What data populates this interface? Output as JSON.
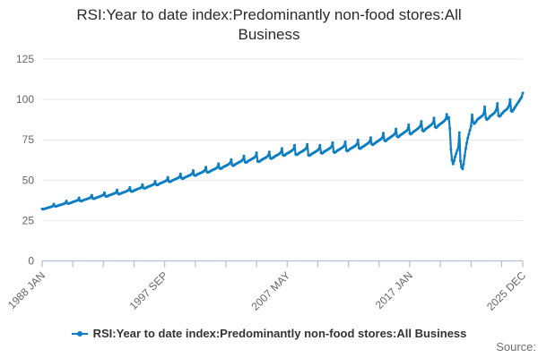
{
  "title": {
    "text": "RSI:Year to date index:Predominantly non-food stores:All Business",
    "lines": [
      "RSI:Year to date index:Predominantly non-food stores:All",
      "Business"
    ]
  },
  "source_label": "Source:",
  "legend": {
    "label": "RSI:Year to date index:Predominantly non-food stores:All Business",
    "marker": "line-dot-icon"
  },
  "colors": {
    "series_blue": "#0e7ec2",
    "grid": "#e6e6e6",
    "axis": "#b3bfd1",
    "tick_label": "#666666",
    "title_text": "#2a2a2a",
    "legend_text": "#333333",
    "source_text": "#6f6f6f",
    "background": "#ffffff"
  },
  "chart_data": {
    "type": "line",
    "title": "RSI:Year to date index:Predominantly non-food stores:All Business",
    "xlabel": "",
    "ylabel": "",
    "grid": true,
    "legend_position": "bottom",
    "ylim": [
      0,
      135
    ],
    "y_ticks": [
      0,
      25,
      50,
      75,
      100,
      125
    ],
    "x_axis": {
      "start": "1988 JAN",
      "end": "2025 DEC",
      "frequency": "monthly",
      "minor_tick_months": [
        0,
        29,
        58,
        87,
        116,
        145,
        174,
        203,
        232,
        261,
        290,
        319,
        348,
        377,
        406,
        435,
        455
      ],
      "labels": [
        {
          "label": "1988 JAN",
          "month": 0
        },
        {
          "label": "1997 SEP",
          "month": 116
        },
        {
          "label": "2007 MAY",
          "month": 232
        },
        {
          "label": "2017 JAN",
          "month": 348
        },
        {
          "label": "2025 DEC",
          "month": 455
        }
      ]
    },
    "series": [
      {
        "name": "RSI:Year to date index:Predominantly non-food stores:All Business",
        "start": "1988-01",
        "values": [
          32.2,
          32.0,
          32.2,
          32.4,
          32.6,
          32.8,
          33.0,
          33.2,
          33.4,
          33.6,
          34.0,
          35.2,
          33.9,
          33.7,
          33.9,
          34.2,
          34.4,
          34.6,
          34.8,
          35.0,
          35.2,
          35.5,
          35.8,
          37.1,
          35.7,
          35.5,
          35.7,
          36.0,
          36.2,
          36.5,
          36.7,
          36.9,
          37.1,
          37.4,
          37.7,
          39.1,
          37.2,
          37.0,
          37.2,
          37.6,
          37.8,
          38.0,
          38.2,
          38.5,
          38.7,
          39.0,
          39.4,
          40.7,
          38.7,
          38.5,
          38.7,
          39.0,
          39.3,
          39.5,
          39.7,
          40.0,
          40.2,
          40.5,
          40.9,
          42.3,
          40.1,
          39.9,
          40.1,
          40.5,
          40.7,
          41.0,
          41.2,
          41.4,
          41.7,
          42.0,
          42.4,
          43.9,
          41.6,
          41.3,
          41.6,
          41.9,
          42.2,
          42.4,
          42.7,
          42.9,
          43.2,
          43.5,
          43.9,
          45.5,
          43.2,
          42.9,
          43.2,
          43.6,
          43.8,
          44.1,
          44.4,
          44.6,
          44.9,
          45.2,
          45.6,
          47.3,
          45.1,
          44.9,
          45.1,
          45.5,
          45.8,
          46.1,
          46.3,
          46.6,
          46.9,
          47.2,
          47.7,
          49.4,
          47.3,
          47.0,
          47.3,
          47.8,
          48.0,
          48.3,
          48.6,
          48.9,
          49.2,
          49.5,
          50.0,
          51.8,
          49.2,
          49.0,
          49.2,
          49.7,
          50.0,
          50.3,
          50.6,
          50.9,
          51.2,
          51.5,
          52.0,
          53.9,
          51.2,
          50.9,
          51.2,
          51.6,
          51.9,
          52.2,
          52.5,
          52.8,
          53.1,
          53.5,
          54.1,
          56.0,
          53.1,
          52.8,
          53.1,
          53.6,
          53.9,
          54.2,
          54.5,
          54.8,
          55.1,
          55.5,
          56.1,
          58.1,
          55.0,
          54.7,
          55.0,
          55.5,
          55.8,
          56.2,
          56.5,
          56.8,
          57.1,
          57.5,
          58.1,
          60.2,
          57.4,
          57.1,
          57.4,
          57.9,
          58.3,
          58.6,
          58.9,
          59.3,
          59.6,
          60.1,
          60.7,
          62.8,
          59.3,
          59.0,
          59.3,
          59.9,
          60.2,
          60.6,
          60.9,
          61.3,
          61.6,
          62.1,
          62.7,
          64.9,
          61.2,
          60.9,
          61.2,
          61.8,
          62.2,
          62.5,
          62.9,
          63.3,
          63.6,
          64.1,
          64.7,
          67.0,
          61.7,
          61.4,
          61.7,
          62.3,
          62.6,
          63.0,
          63.4,
          63.7,
          64.1,
          64.6,
          65.2,
          67.5,
          63.6,
          63.3,
          63.6,
          64.2,
          64.6,
          65.0,
          65.4,
          65.7,
          66.1,
          66.6,
          67.2,
          69.6,
          65.6,
          65.2,
          65.6,
          66.2,
          66.5,
          66.9,
          67.3,
          67.7,
          68.1,
          68.6,
          69.3,
          71.7,
          66.0,
          65.7,
          66.0,
          66.6,
          67.0,
          67.4,
          67.8,
          68.2,
          68.6,
          69.1,
          69.8,
          72.2,
          65.6,
          65.2,
          65.6,
          66.2,
          66.5,
          66.9,
          67.3,
          67.7,
          68.1,
          68.6,
          69.3,
          71.7,
          67.0,
          66.6,
          67.0,
          67.6,
          68.0,
          68.4,
          68.8,
          69.2,
          69.6,
          70.1,
          70.8,
          73.3,
          67.5,
          67.1,
          67.5,
          68.1,
          68.5,
          68.9,
          69.3,
          69.7,
          70.1,
          70.6,
          71.3,
          73.8,
          68.4,
          68.0,
          68.4,
          69.1,
          69.5,
          69.9,
          70.3,
          70.7,
          71.1,
          71.6,
          72.3,
          74.9,
          69.9,
          69.5,
          69.9,
          70.5,
          70.9,
          71.3,
          71.8,
          72.2,
          72.6,
          73.1,
          73.8,
          76.4,
          72.3,
          71.9,
          72.3,
          72.9,
          73.4,
          73.8,
          74.2,
          74.7,
          75.1,
          75.6,
          76.4,
          79.1,
          74.7,
          74.2,
          74.7,
          75.4,
          75.8,
          76.2,
          76.7,
          77.1,
          77.6,
          78.1,
          78.9,
          81.7,
          77.1,
          76.6,
          77.1,
          77.8,
          78.2,
          78.7,
          79.2,
          79.6,
          80.1,
          80.6,
          81.4,
          84.3,
          79.0,
          78.5,
          79.0,
          79.7,
          80.2,
          80.6,
          81.1,
          81.6,
          82.1,
          82.7,
          83.5,
          86.4,
          80.9,
          80.4,
          80.9,
          81.7,
          82.1,
          82.6,
          83.1,
          83.6,
          84.1,
          84.7,
          85.5,
          88.5,
          83.0,
          82.5,
          83.0,
          83.8,
          84.3,
          84.8,
          85.3,
          85.8,
          86.3,
          86.9,
          87.7,
          90.8,
          88.0,
          88.8,
          82.0,
          69.0,
          62.5,
          60.0,
          62.0,
          64.5,
          66.5,
          68.5,
          70.0,
          79.5,
          62.0,
          58.0,
          57.0,
          60.0,
          65.0,
          69.5,
          73.0,
          76.0,
          78.5,
          81.0,
          83.5,
          90.5,
          86.0,
          85.0,
          85.5,
          86.5,
          87.5,
          88.0,
          88.5,
          89.0,
          89.5,
          90.0,
          91.0,
          95.5,
          88.5,
          87.5,
          88.0,
          88.5,
          89.5,
          90.0,
          90.5,
          91.0,
          91.5,
          92.5,
          93.5,
          97.5,
          90.0,
          89.5,
          90.0,
          91.0,
          91.5,
          92.5,
          93.0,
          93.5,
          94.0,
          95.0,
          96.0,
          100.0,
          93.0,
          92.5,
          93.5,
          94.5,
          95.5,
          96.5,
          97.5,
          98.5,
          99.5,
          100.5,
          101.5,
          104.0
        ]
      }
    ]
  }
}
